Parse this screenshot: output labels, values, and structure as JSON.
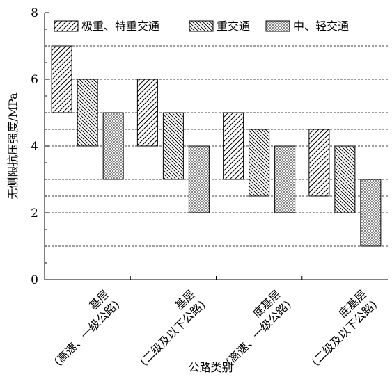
{
  "chart_data": {
    "type": "bar",
    "subtype": "floating-range",
    "title": "",
    "xlabel": "公路类别",
    "ylabel": "无侧限抗压强度/MPa",
    "ylim": [
      0,
      8
    ],
    "yticks": [
      0,
      2,
      4,
      6,
      8
    ],
    "grid": "dashed-horizontal",
    "gridlines": [
      1,
      2,
      2.5,
      3,
      4,
      4.5,
      5,
      6,
      7
    ],
    "legend_position": "top",
    "categories": [
      [
        "基层",
        "(高速、一级公路)"
      ],
      [
        "基层",
        "(二级及以下公路)"
      ],
      [
        "底基层",
        "(高速、一级公路)"
      ],
      [
        "底基层",
        "(二级及以下公路)"
      ]
    ],
    "series": [
      {
        "name": "极重、特重交通",
        "pattern": "hatch-forward",
        "low": [
          5,
          4,
          3,
          2.5
        ],
        "high": [
          7,
          6,
          5,
          4.5
        ]
      },
      {
        "name": "重交通",
        "pattern": "hatch-back",
        "low": [
          4,
          3,
          2.5,
          2
        ],
        "high": [
          6,
          5,
          4.5,
          4
        ]
      },
      {
        "name": "中、轻交通",
        "pattern": "crosshatch",
        "low": [
          3,
          2,
          2,
          1
        ],
        "high": [
          5,
          4,
          4,
          3
        ]
      }
    ]
  }
}
